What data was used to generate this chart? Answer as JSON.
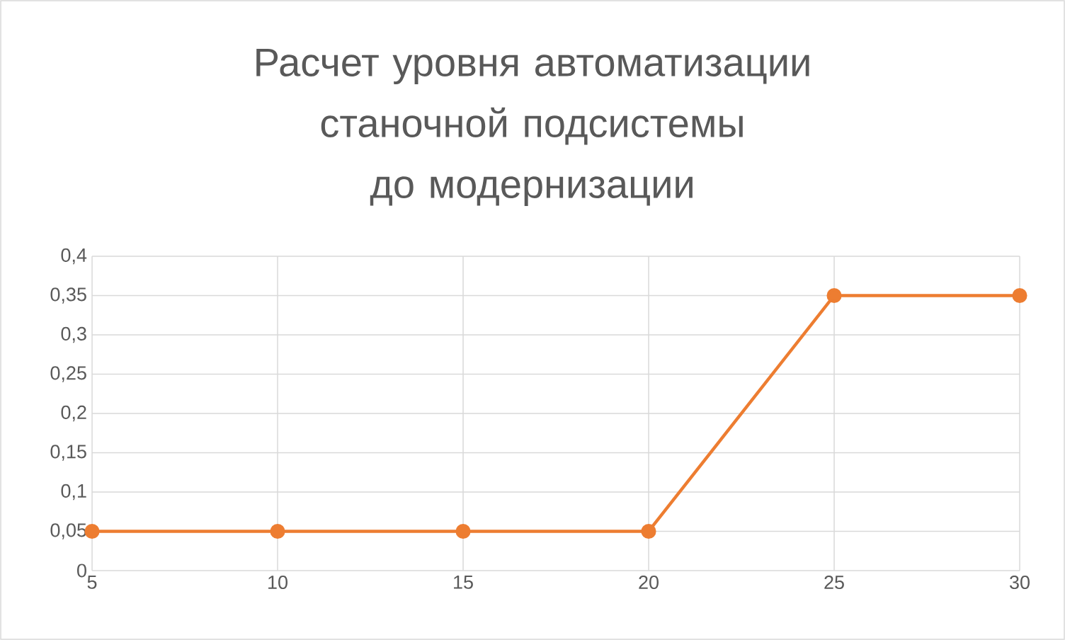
{
  "chart_data": {
    "type": "line",
    "title": "Расчет уровня автоматизации станочной подсистемы до модернизации",
    "x": [
      5,
      10,
      15,
      20,
      25,
      30
    ],
    "series": [
      {
        "color": "#ed7d31",
        "values": [
          0.05,
          0.05,
          0.05,
          0.05,
          0.35,
          0.35
        ]
      }
    ],
    "xlim": [
      5,
      30
    ],
    "xticks": [
      5,
      10,
      15,
      20,
      25,
      30
    ],
    "ylim": [
      0,
      0.4
    ],
    "yticks": [
      0,
      {
        "value": 0.05,
        "label": "0,05"
      },
      {
        "value": 0.1,
        "label": "0,1"
      },
      {
        "value": 0.15,
        "label": "0,15"
      },
      {
        "value": 0.2,
        "label": "0,2"
      },
      {
        "value": 0.25,
        "label": "0,25"
      },
      {
        "value": 0.3,
        "label": "0,3"
      },
      {
        "value": 0.35,
        "label": "0,35"
      },
      {
        "value": 0.4,
        "label": "0,4"
      }
    ],
    "grid": true,
    "marker": "circle",
    "line_style": "solid"
  }
}
